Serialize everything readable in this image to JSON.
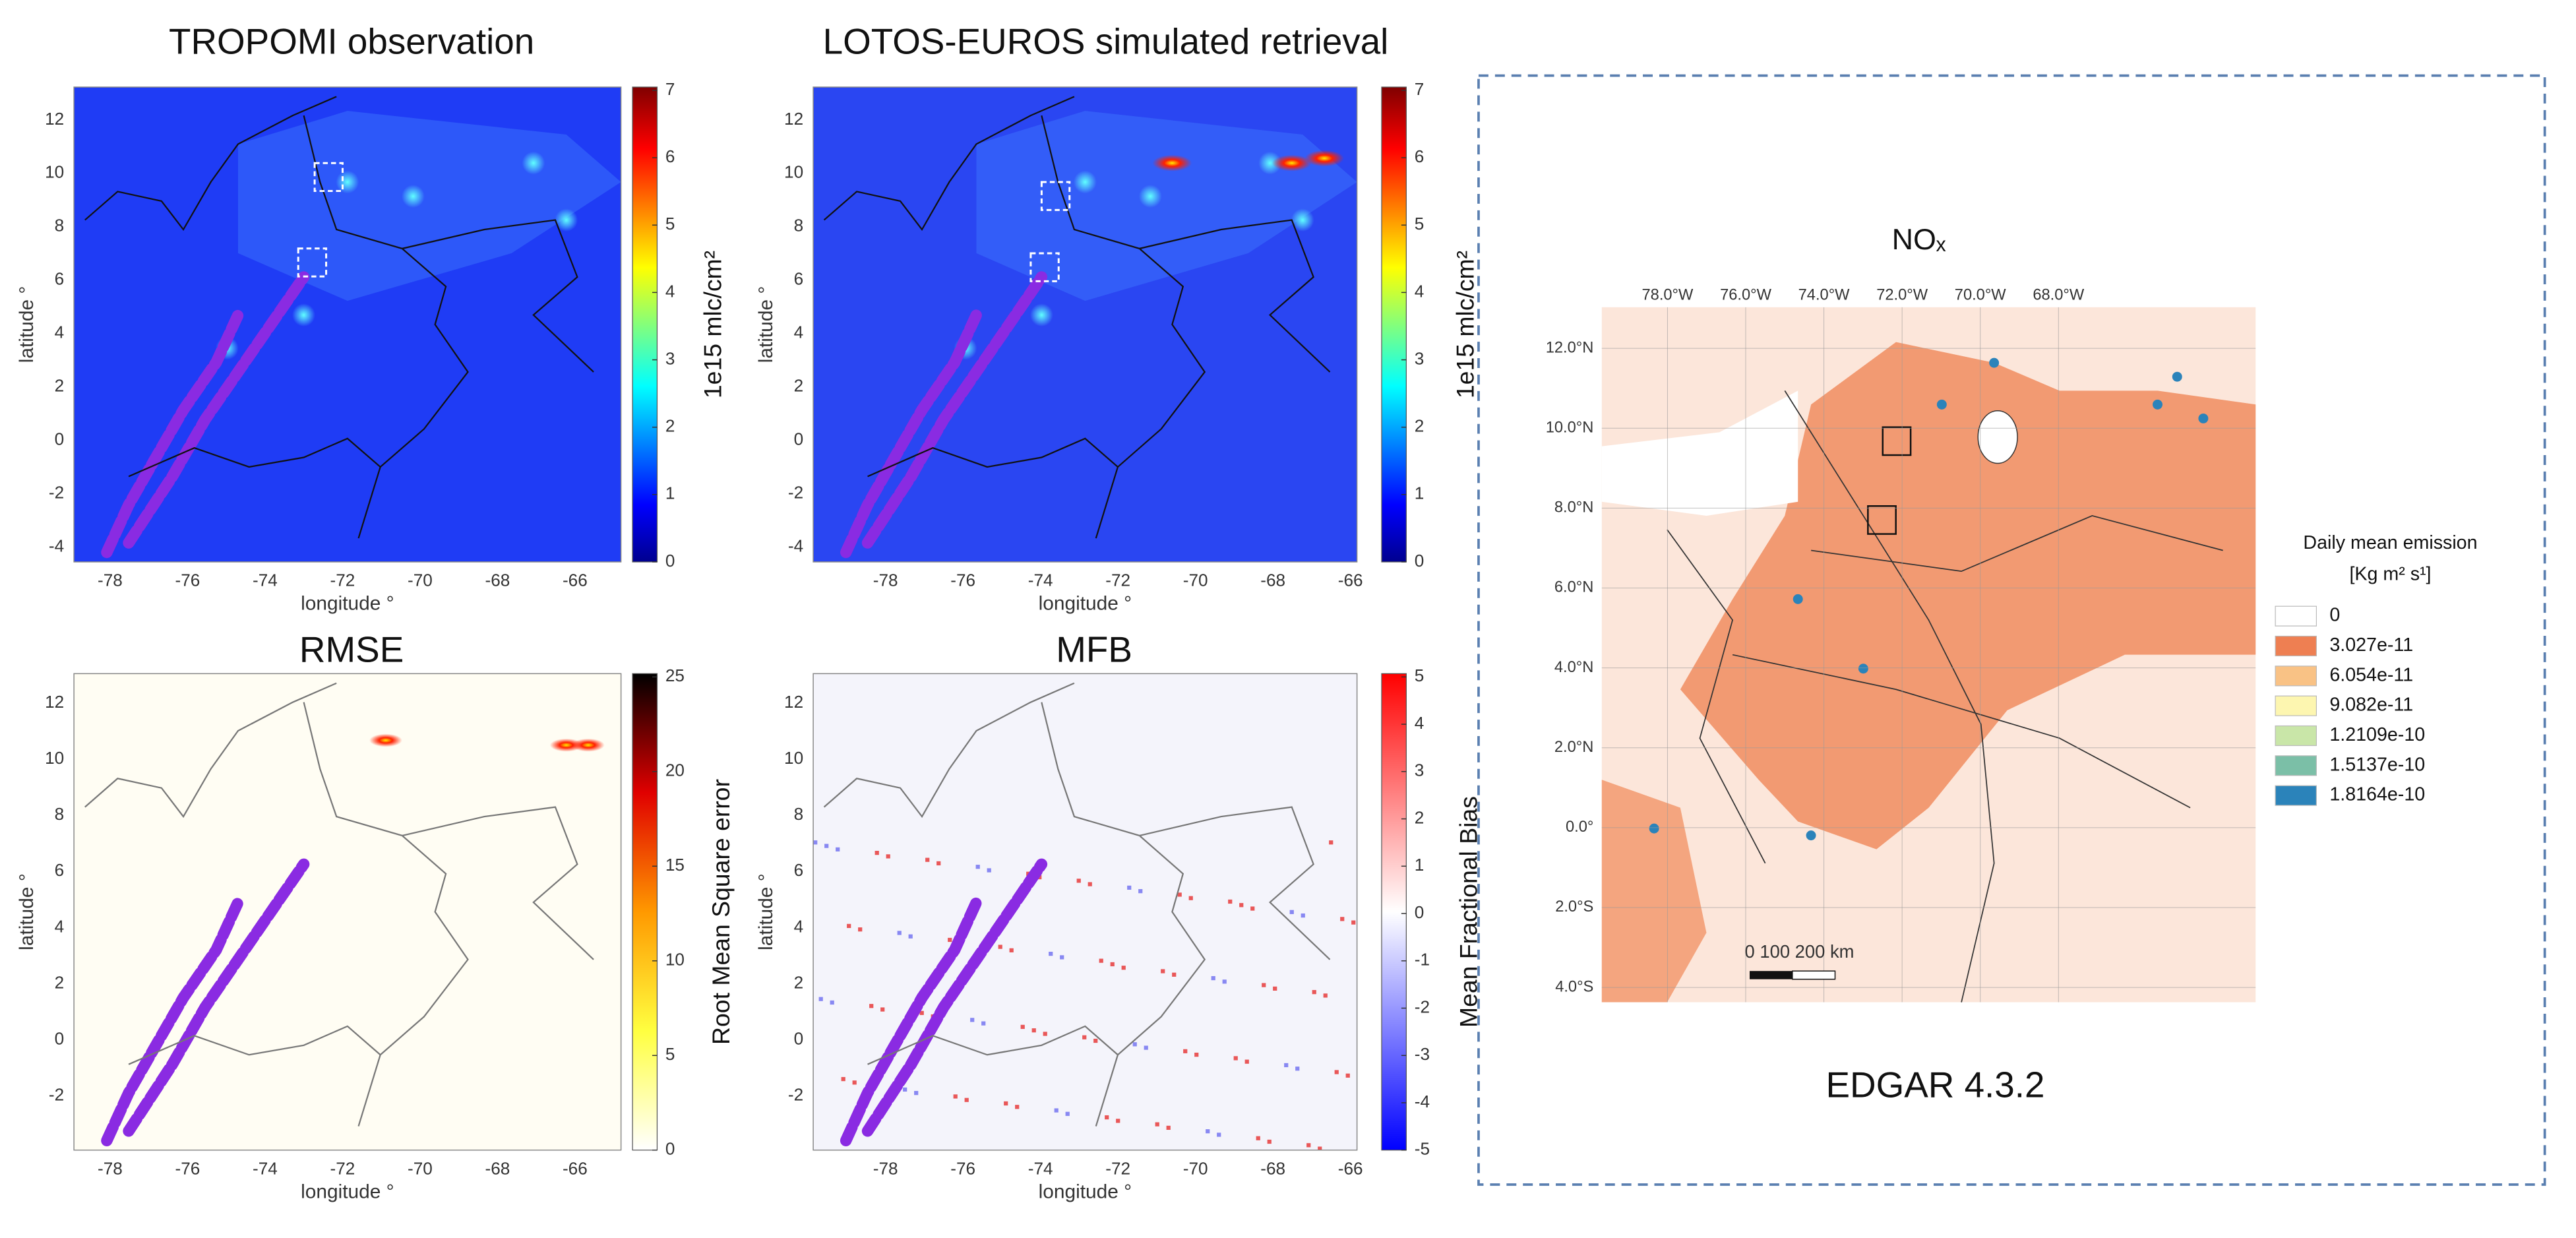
{
  "panels": [
    {
      "title": "TROPOMI observation",
      "xlabel": "longitude °",
      "ylabel": "latitude °",
      "colorbar_label": "1e15 mlc/cm²",
      "xticks": [
        -78,
        -76,
        -74,
        -72,
        -70,
        -68,
        -66
      ],
      "yticks": [
        12,
        10,
        8,
        6,
        4,
        2,
        0,
        -2,
        -4
      ],
      "cbar_ticks": [
        0,
        1,
        2,
        3,
        4,
        5,
        6,
        7
      ]
    },
    {
      "title": "LOTOS-EUROS simulated retrieval",
      "xlabel": "longitude °",
      "ylabel": "latitude °",
      "colorbar_label": "1e15 mlc/cm²",
      "xticks": [
        -78,
        -76,
        -74,
        -72,
        -70,
        -68,
        -66
      ],
      "yticks": [
        12,
        10,
        8,
        6,
        4,
        2,
        0,
        -2,
        -4
      ],
      "cbar_ticks": [
        0,
        1,
        2,
        3,
        4,
        5,
        6,
        7
      ]
    },
    {
      "title": "RMSE",
      "xlabel": "longitude °",
      "ylabel": "latitude °",
      "colorbar_label": "Root Mean Square error",
      "xticks": [
        -78,
        -76,
        -74,
        -72,
        -70,
        -68,
        -66
      ],
      "yticks": [
        12,
        10,
        8,
        6,
        4,
        2,
        0,
        -2
      ],
      "cbar_ticks": [
        0,
        5,
        10,
        15,
        20,
        25
      ]
    },
    {
      "title": "MFB",
      "xlabel": "longitude °",
      "ylabel": "latitude °",
      "colorbar_label": "Mean Fractional Bias",
      "xticks": [
        -78,
        -76,
        -74,
        -72,
        -70,
        -68,
        -66
      ],
      "yticks": [
        12,
        10,
        8,
        6,
        4,
        2,
        0,
        -2
      ],
      "cbar_ticks": [
        -5,
        -4,
        -3,
        -2,
        -1,
        0,
        1,
        2,
        3,
        4,
        5
      ]
    }
  ],
  "edgar": {
    "title": "NOₓ",
    "lon_labels": [
      "78.0°W",
      "76.0°W",
      "74.0°W",
      "72.0°W",
      "70.0°W",
      "68.0°W"
    ],
    "lat_labels": [
      "12.0°N",
      "10.0°N",
      "8.0°N",
      "6.0°N",
      "4.0°N",
      "2.0°N",
      "0.0°",
      "2.0°S",
      "4.0°S"
    ],
    "legend_title": "Daily mean emission",
    "legend_unit": "[Kg m² s¹]",
    "legend": [
      {
        "label": "0",
        "color": "#ffffff"
      },
      {
        "label": "3.027e-11",
        "color": "#ee7f52"
      },
      {
        "label": "6.054e-11",
        "color": "#f9c285"
      },
      {
        "label": "9.082e-11",
        "color": "#fdf6b0"
      },
      {
        "label": "1.2109e-10",
        "color": "#c9e6a8"
      },
      {
        "label": "1.5137e-10",
        "color": "#7bbfa7"
      },
      {
        "label": "1.8164e-10",
        "color": "#2b83ba"
      }
    ],
    "scale_label": "0   100 200 km",
    "caption": "EDGAR 4.3.2"
  }
}
